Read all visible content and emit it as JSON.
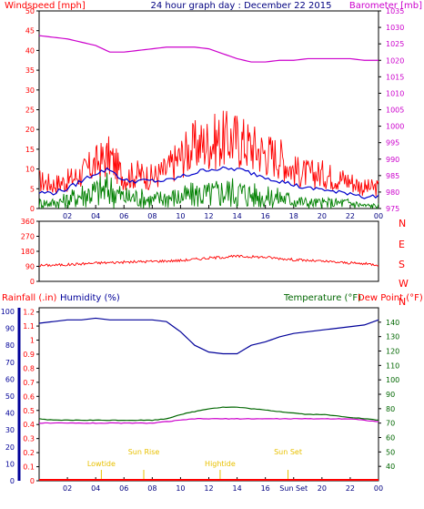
{
  "chart_data": [
    {
      "panel": "wind-pressure",
      "type": "line",
      "title": "24 hour graph day : December 22 2015",
      "left_axis_label": "Windspeed [mph]",
      "right_axis_label": "Barometer [mb]",
      "left_ylim": [
        0,
        50
      ],
      "left_ticks": [
        "0",
        "5",
        "10",
        "15",
        "20",
        "25",
        "30",
        "35",
        "40",
        "45",
        "50"
      ],
      "right_ylim": [
        975,
        1035
      ],
      "right_ticks": [
        "975",
        "980",
        "985",
        "990",
        "995",
        "1000",
        "1005",
        "1010",
        "1015",
        "1020",
        "1025",
        "1030",
        "1035"
      ],
      "x_ticks": [
        "02",
        "04",
        "06",
        "08",
        "10",
        "12",
        "14",
        "16",
        "18",
        "20",
        "22",
        "00"
      ],
      "colors": {
        "gust": "#ff0000",
        "wind_avg": "#0000cc",
        "wind": "#008000",
        "barometer": "#cc00cc"
      },
      "series": [
        {
          "series_key": "barometer",
          "axis": "right",
          "x_hours": [
            0,
            1,
            2,
            3,
            4,
            5,
            6,
            7,
            8,
            9,
            10,
            11,
            12,
            13,
            14,
            15,
            16,
            17,
            18,
            19,
            20,
            21,
            22,
            23,
            24
          ],
          "values": [
            1027.5,
            1027,
            1026.5,
            1025.5,
            1024.5,
            1022.5,
            1022.5,
            1023,
            1023.5,
            1024,
            1024,
            1024,
            1023.5,
            1022,
            1020.5,
            1019.5,
            1019.5,
            1020,
            1020,
            1020.5,
            1020.5,
            1020.5,
            1020.5,
            1020,
            1020
          ]
        },
        {
          "series_key": "gust",
          "axis": "left",
          "x_hours": [
            0,
            1,
            2,
            3,
            4,
            5,
            6,
            7,
            8,
            9,
            10,
            11,
            12,
            13,
            14,
            15,
            16,
            17,
            18,
            19,
            20,
            21,
            22,
            23,
            24
          ],
          "values": [
            8,
            7,
            8,
            10,
            13,
            15,
            9,
            10,
            9,
            11,
            15,
            18,
            19,
            20,
            20,
            18,
            16,
            15,
            11,
            10,
            10,
            9,
            8,
            6,
            6
          ]
        },
        {
          "series_key": "wind_avg",
          "axis": "left",
          "x_hours": [
            0,
            1,
            2,
            3,
            4,
            5,
            6,
            7,
            8,
            9,
            10,
            11,
            12,
            13,
            14,
            15,
            16,
            17,
            18,
            19,
            20,
            21,
            22,
            23,
            24
          ],
          "values": [
            4,
            4,
            5,
            7,
            9,
            10,
            7,
            7,
            7,
            7,
            8,
            9,
            10,
            10,
            10,
            9,
            8,
            7,
            6,
            5,
            5,
            4,
            4,
            3,
            3
          ]
        },
        {
          "series_key": "wind",
          "axis": "left",
          "x_hours": [
            0,
            1,
            2,
            3,
            4,
            5,
            6,
            7,
            8,
            9,
            10,
            11,
            12,
            13,
            14,
            15,
            16,
            17,
            18,
            19,
            20,
            21,
            22,
            23,
            24
          ],
          "values": [
            2,
            2,
            3,
            5,
            6,
            7,
            4,
            4,
            3,
            4,
            4,
            5,
            5,
            6,
            6,
            5,
            4,
            4,
            3,
            2,
            2,
            2,
            2,
            1,
            1
          ]
        }
      ]
    },
    {
      "panel": "wind-direction",
      "type": "line",
      "left_ylim": [
        0,
        360
      ],
      "left_ticks": [
        "0",
        "90",
        "180",
        "270",
        "360"
      ],
      "right_labels": [
        "N",
        "W",
        "S",
        "E",
        "N"
      ],
      "colors": {
        "direction": "#ff0000"
      },
      "series": [
        {
          "series_key": "direction",
          "x_hours": [
            0,
            2,
            4,
            6,
            8,
            10,
            12,
            14,
            16,
            18,
            20,
            22,
            24
          ],
          "values": [
            95,
            100,
            110,
            115,
            120,
            125,
            140,
            150,
            145,
            130,
            120,
            110,
            100
          ]
        }
      ]
    },
    {
      "panel": "rain-humidity-temp",
      "type": "line",
      "left_axis_label_1": "Rainfall (.in)",
      "left_axis_label_2": "Humidity (%)",
      "right_axis_label_1": "Temperature (°F)",
      "right_axis_label_2": "Dew Point (°F)",
      "rain_ticks": [
        "0",
        "0.1",
        "0.2",
        "0.3",
        "0.4",
        "0.5",
        "0.6",
        "0.7",
        "0.8",
        "0.9",
        "1",
        "1.1",
        "1.2"
      ],
      "humidity_ticks": [
        "0",
        "10",
        "20",
        "30",
        "40",
        "50",
        "60",
        "70",
        "80",
        "90",
        "100"
      ],
      "right_ylim": [
        30,
        150
      ],
      "right_ticks": [
        "40",
        "50",
        "60",
        "70",
        "80",
        "90",
        "100",
        "110",
        "120",
        "130",
        "140"
      ],
      "colors": {
        "humidity": "#000099",
        "temperature": "#006600",
        "dewpoint": "#cc00cc",
        "rainfall": "#ff0000",
        "sun_marker": "#e8c000"
      },
      "series": [
        {
          "series_key": "humidity",
          "axis": "humidity",
          "x_hours": [
            0,
            1,
            2,
            3,
            4,
            5,
            6,
            7,
            8,
            9,
            10,
            11,
            12,
            13,
            14,
            15,
            16,
            17,
            18,
            19,
            20,
            21,
            22,
            23,
            24
          ],
          "values": [
            93,
            94,
            95,
            95,
            96,
            95,
            95,
            95,
            95,
            94,
            88,
            80,
            76,
            75,
            75,
            80,
            82,
            85,
            87,
            88,
            89,
            90,
            91,
            92,
            95
          ]
        },
        {
          "series_key": "temperature",
          "axis": "right",
          "x_hours": [
            0,
            1,
            2,
            3,
            4,
            5,
            6,
            7,
            8,
            9,
            10,
            11,
            12,
            13,
            14,
            15,
            16,
            17,
            18,
            19,
            20,
            21,
            22,
            23,
            24
          ],
          "values": [
            73,
            72,
            72,
            72,
            72,
            72,
            72,
            72,
            72,
            73,
            76,
            78,
            80,
            81,
            81,
            80,
            79,
            78,
            77,
            76,
            76,
            75,
            74,
            73,
            72
          ]
        },
        {
          "series_key": "dewpoint",
          "axis": "right",
          "x_hours": [
            0,
            1,
            2,
            3,
            4,
            5,
            6,
            7,
            8,
            9,
            10,
            11,
            12,
            13,
            14,
            15,
            16,
            17,
            18,
            19,
            20,
            21,
            22,
            23,
            24
          ],
          "values": [
            70,
            70,
            70,
            70,
            70,
            70,
            70,
            70,
            70,
            71,
            72,
            73,
            73,
            73,
            73,
            73,
            73,
            73,
            73,
            73,
            73,
            73,
            73,
            72,
            71
          ]
        },
        {
          "series_key": "rainfall",
          "axis": "rain",
          "x_hours": [
            0,
            24
          ],
          "values": [
            0,
            0
          ]
        }
      ],
      "events": [
        {
          "label": "Lowtide",
          "x_hour": 4.4
        },
        {
          "label": "Sun Rise",
          "x_hour": 7.4
        },
        {
          "label": "Hightide",
          "x_hour": 12.8
        },
        {
          "label": "Sun Set",
          "x_hour": 17.6
        }
      ],
      "x_tick_labels": [
        "02",
        "04",
        "06",
        "08",
        "10",
        "12",
        "14",
        "16",
        "Sun Set",
        "20",
        "22",
        "00"
      ]
    }
  ]
}
